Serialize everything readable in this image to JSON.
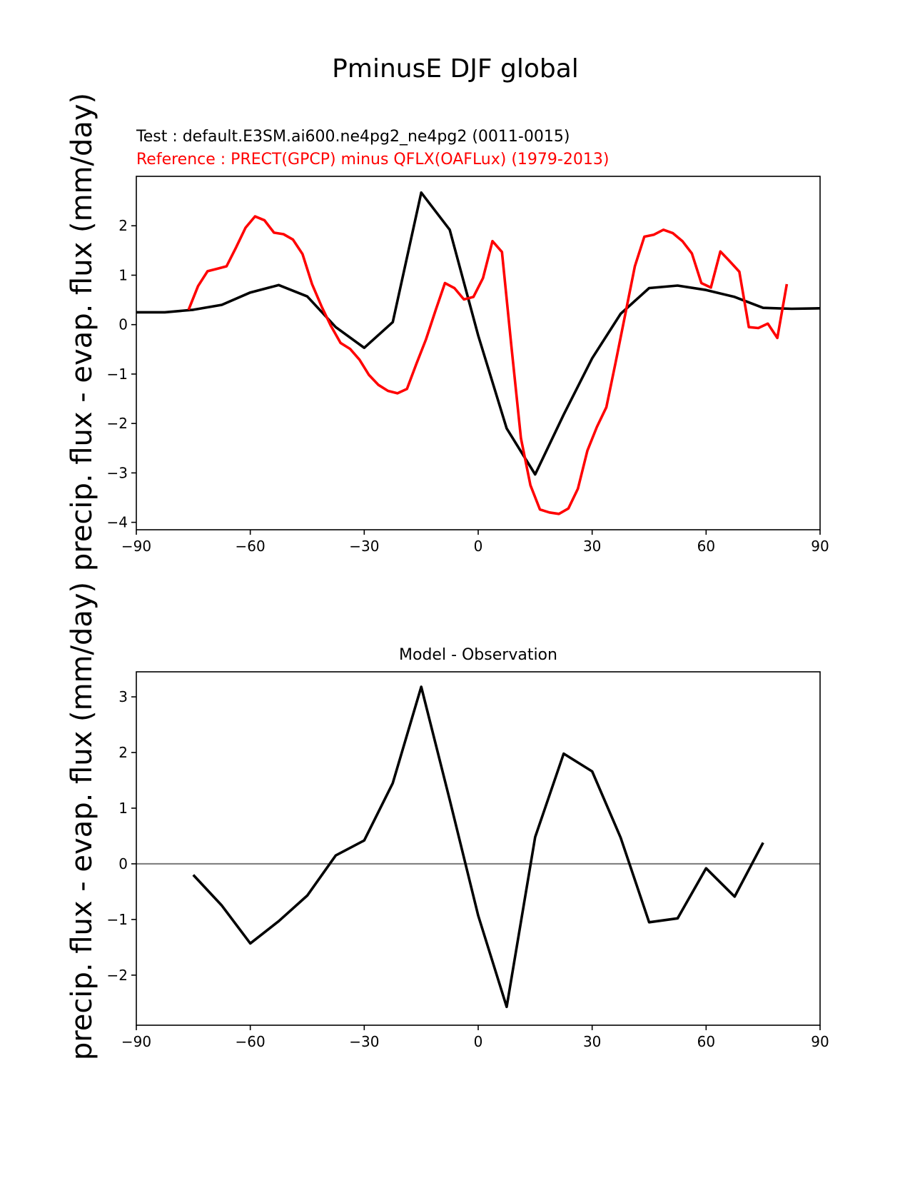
{
  "figure": {
    "title": "PminusE DJF global",
    "ylabel": "precip. flux - evap. flux (mm/day)"
  },
  "colors": {
    "test": "#000000",
    "reference": "#ff0000",
    "zero_line": "#808080"
  },
  "chart_data": [
    {
      "type": "line",
      "title_test": "Test : default.E3SM.ai600.ne4pg2_ne4pg2 (0011-0015)",
      "title_reference": "Reference : PRECT(GPCP) minus QFLX(OAFLux) (1979-2013)",
      "xlabel": "",
      "ylabel": "precip. flux - evap. flux (mm/day)",
      "xlim": [
        -90,
        90
      ],
      "ylim": [
        -4.15,
        3.0
      ],
      "xticks": [
        -90,
        -60,
        -30,
        0,
        30,
        60,
        90
      ],
      "xtick_labels": [
        "−90",
        "−60",
        "−30",
        "0",
        "30",
        "60",
        "90"
      ],
      "yticks": [
        -4,
        -3,
        -2,
        -1,
        0,
        1,
        2
      ],
      "ytick_labels": [
        "−4",
        "−3",
        "−2",
        "−1",
        "0",
        "1",
        "2"
      ],
      "series": [
        {
          "name": "test",
          "x": [
            -90,
            -82.5,
            -75,
            -67.5,
            -60,
            -52.5,
            -45,
            -37.5,
            -30,
            -22.5,
            -15,
            -7.5,
            0,
            7.5,
            15,
            22.5,
            30,
            37.5,
            45,
            52.5,
            60,
            67.5,
            75,
            82.5,
            90
          ],
          "y": [
            0.25,
            0.25,
            0.3,
            0.4,
            0.65,
            0.8,
            0.57,
            -0.05,
            -0.47,
            0.05,
            2.67,
            1.92,
            -0.22,
            -2.1,
            -3.03,
            -1.82,
            -0.68,
            0.22,
            0.74,
            0.79,
            0.7,
            0.56,
            0.34,
            0.32,
            0.33
          ]
        },
        {
          "name": "reference",
          "x": [
            -76.25,
            -73.75,
            -71.25,
            -68.75,
            -66.25,
            -63.75,
            -61.25,
            -58.75,
            -56.25,
            -53.75,
            -51.25,
            -48.75,
            -46.25,
            -43.75,
            -41.25,
            -38.75,
            -36.25,
            -33.75,
            -31.25,
            -28.75,
            -26.25,
            -23.75,
            -21.25,
            -18.75,
            -16.25,
            -13.75,
            -11.25,
            -8.75,
            -6.25,
            -3.75,
            -1.25,
            1.25,
            3.75,
            6.25,
            8.75,
            11.25,
            13.75,
            16.25,
            18.75,
            21.25,
            23.75,
            26.25,
            28.75,
            31.25,
            33.75,
            36.25,
            38.75,
            41.25,
            43.75,
            46.25,
            48.75,
            51.25,
            53.75,
            56.25,
            58.75,
            61.25,
            63.75,
            66.25,
            68.75,
            71.25,
            73.75,
            76.25,
            78.75,
            81.25
          ],
          "y": [
            0.3,
            0.78,
            1.08,
            1.13,
            1.18,
            1.56,
            1.96,
            2.19,
            2.11,
            1.86,
            1.83,
            1.72,
            1.43,
            0.82,
            0.37,
            -0.03,
            -0.37,
            -0.49,
            -0.71,
            -1.02,
            -1.22,
            -1.34,
            -1.39,
            -1.3,
            -0.79,
            -0.3,
            0.28,
            0.84,
            0.74,
            0.51,
            0.56,
            0.94,
            1.69,
            1.47,
            -0.45,
            -2.3,
            -3.25,
            -3.74,
            -3.8,
            -3.83,
            -3.72,
            -3.32,
            -2.55,
            -2.07,
            -1.67,
            -0.74,
            0.22,
            1.18,
            1.78,
            1.82,
            1.92,
            1.85,
            1.69,
            1.44,
            0.84,
            0.75,
            1.48,
            1.28,
            1.07,
            -0.05,
            -0.07,
            0.02,
            -0.27,
            0.82
          ]
        }
      ]
    },
    {
      "type": "line",
      "title": "Model - Observation",
      "xlabel": "",
      "ylabel": "precip. flux - evap. flux (mm/day)",
      "xlim": [
        -90,
        90
      ],
      "ylim": [
        -2.9,
        3.45
      ],
      "xticks": [
        -90,
        -60,
        -30,
        0,
        30,
        60,
        90
      ],
      "xtick_labels": [
        "−90",
        "−60",
        "−30",
        "0",
        "30",
        "60",
        "90"
      ],
      "yticks": [
        -2,
        -1,
        0,
        1,
        2,
        3
      ],
      "ytick_labels": [
        "−2",
        "−1",
        "0",
        "1",
        "2",
        "3"
      ],
      "zero_line": 0,
      "series": [
        {
          "name": "difference",
          "x": [
            -75,
            -67.5,
            -60,
            -52.5,
            -45,
            -37.5,
            -30,
            -22.5,
            -15,
            -7.5,
            0,
            7.5,
            15,
            22.5,
            30,
            37.5,
            45,
            52.5,
            60,
            67.5,
            75
          ],
          "y": [
            -0.2,
            -0.75,
            -1.43,
            -1.03,
            -0.57,
            0.15,
            0.42,
            1.45,
            3.18,
            1.15,
            -0.93,
            -2.57,
            0.48,
            1.98,
            1.66,
            0.47,
            -1.05,
            -0.98,
            -0.08,
            -0.59,
            0.38
          ]
        }
      ]
    }
  ]
}
